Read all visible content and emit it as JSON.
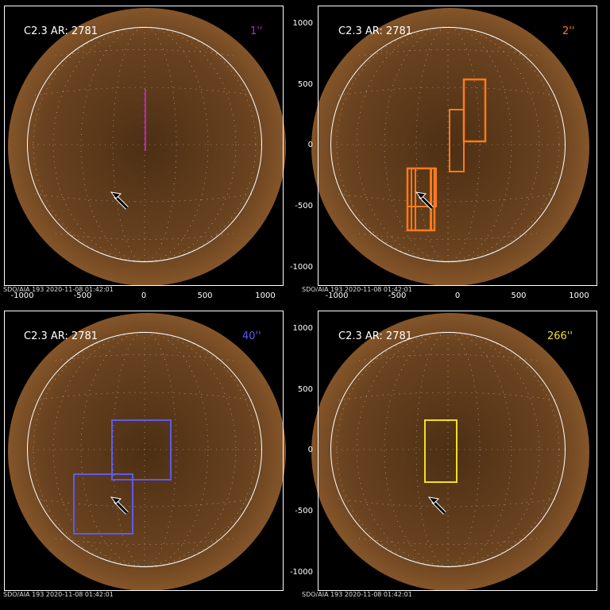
{
  "panels": [
    {
      "id": "p1",
      "title": "C2.3 AR: 2781",
      "tag": "1''",
      "tag_color": "#c81fc8",
      "footer": "SDO/AIA 193   2020-11-08 01:42:01"
    },
    {
      "id": "p2",
      "title": "C2.3 AR: 2781",
      "tag": "2''",
      "tag_color": "#ff7a1a",
      "footer": "SDO/AIA 193   2020-11-08 01:42:01"
    },
    {
      "id": "p3",
      "title": "C2.3 AR: 2781",
      "tag": "40''",
      "tag_color": "#5b5bf0",
      "footer": "SDO/AIA 193   2020-11-08 01:42:01"
    },
    {
      "id": "p4",
      "title": "C2.3 AR: 2781",
      "tag": "266''",
      "tag_color": "#f0e020",
      "footer": "SDO/AIA 193   2020-11-08 01:42:01"
    }
  ],
  "axes": {
    "y_ticks": [
      "1000",
      "500",
      "0",
      "-500",
      "-1000"
    ],
    "x_ticks": [
      "-1000",
      "-500",
      "0",
      "500",
      "1000"
    ]
  },
  "colors": {
    "sun_core": "#6a4320",
    "sun_edge": "#c88a4a",
    "arrow": "#000000"
  }
}
